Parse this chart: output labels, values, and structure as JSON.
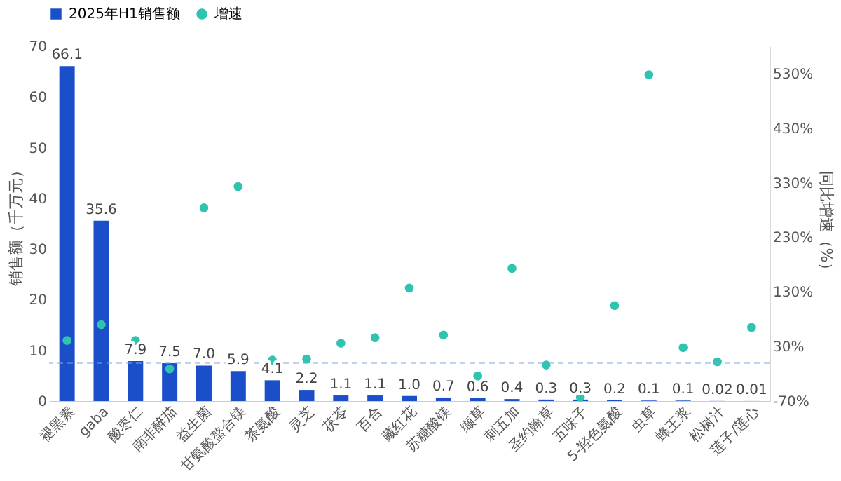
{
  "chart_data": {
    "type": "bar",
    "ylabel": "销售额（千万元）",
    "y2label": "同比增速（%）",
    "categories": [
      "褪黑素",
      "gaba",
      "酸枣仁",
      "南非醉茄",
      "益生菌",
      "甘氨酸螯合镁",
      "茶氨酸",
      "灵芝",
      "茯苓",
      "百合",
      "藏红花",
      "苏糖酸镁",
      "缬草",
      "刺五加",
      "圣约翰草",
      "五味子",
      "5-羟色氨酸",
      "虫草",
      "蜂王浆",
      "松树汁",
      "莲子/莲心"
    ],
    "series": [
      {
        "name": "2025年H1销售额",
        "color": "#1b4fc9",
        "values": [
          66.1,
          35.6,
          7.9,
          7.5,
          7.0,
          5.9,
          4.1,
          2.2,
          1.1,
          1.1,
          1.0,
          0.7,
          0.6,
          0.4,
          0.3,
          0.3,
          0.2,
          0.1,
          0.1,
          0.02,
          0.01
        ],
        "value_labels": [
          "66.1",
          "35.6",
          "7.9",
          "7.5",
          "7.0",
          "5.9",
          "4.1",
          "2.2",
          "1.1",
          "1.1",
          "1.0",
          "0.7",
          "0.6",
          "0.4",
          "0.3",
          "0.3",
          "0.2",
          "0.1",
          "0.1",
          "0.02",
          "0.01"
        ]
      },
      {
        "name": "增速",
        "type": "scatter",
        "axis": "y2",
        "color": "#2ec4b0",
        "marker": "circle",
        "values": [
          41,
          70,
          41,
          -11,
          284,
          323,
          5,
          7,
          36,
          46,
          137,
          51,
          -24,
          173,
          -4,
          -63,
          105,
          528,
          28,
          2,
          65
        ]
      }
    ],
    "ylim": [
      0,
      70
    ],
    "yticks": [
      0,
      10,
      20,
      30,
      40,
      50,
      60,
      70
    ],
    "y2lim": [
      -70,
      580
    ],
    "y2ticks": [
      {
        "value": -70,
        "label": "-70%"
      },
      {
        "value": 30,
        "label": "30%"
      },
      {
        "value": 130,
        "label": "130%"
      },
      {
        "value": 230,
        "label": "230%"
      },
      {
        "value": 330,
        "label": "330%"
      },
      {
        "value": 430,
        "label": "430%"
      },
      {
        "value": 530,
        "label": "530%"
      }
    ],
    "ref_lines": [
      {
        "axis": "y2",
        "value": 0,
        "color": "#7fa8e0",
        "line_style": "dashed"
      }
    ],
    "legend": "top",
    "grid": false
  }
}
